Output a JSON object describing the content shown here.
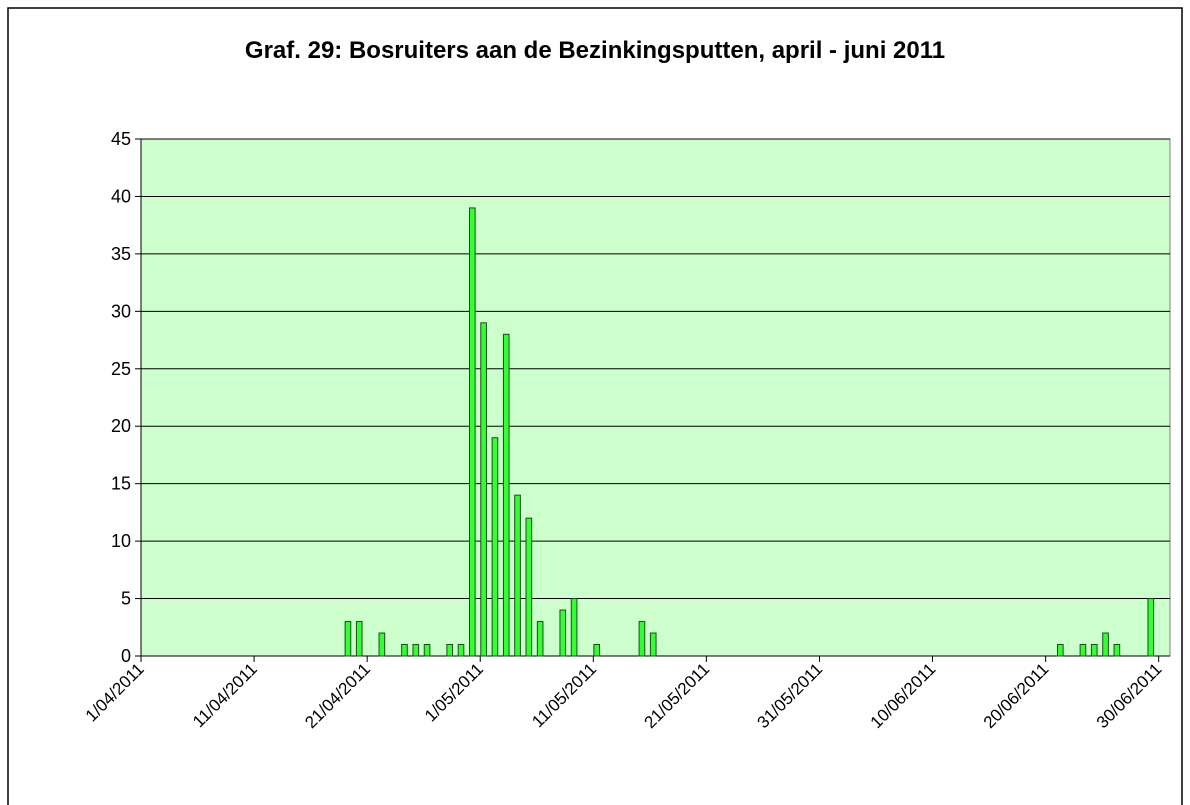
{
  "chart_data": {
    "type": "bar",
    "title": "Graf. 29: Bosruiters aan de Bezinkingsputten, april - juni 2011",
    "x": [
      "19/04/2011",
      "20/04/2011",
      "22/04/2011",
      "24/04/2011",
      "25/04/2011",
      "26/04/2011",
      "28/04/2011",
      "29/04/2011",
      "30/04/2011",
      "1/05/2011",
      "2/05/2011",
      "3/05/2011",
      "4/05/2011",
      "5/05/2011",
      "6/05/2011",
      "8/05/2011",
      "9/05/2011",
      "11/05/2011",
      "15/05/2011",
      "16/05/2011",
      "21/06/2011",
      "23/06/2011",
      "24/06/2011",
      "25/06/2011",
      "26/06/2011",
      "29/06/2011"
    ],
    "values": [
      3,
      3,
      2,
      1,
      1,
      1,
      1,
      1,
      39,
      29,
      19,
      28,
      14,
      12,
      3,
      4,
      5,
      1,
      3,
      2,
      1,
      1,
      1,
      2,
      1,
      5
    ],
    "color": "#33ff33",
    "xlim": [
      "1/04/2011",
      "1/07/2011"
    ],
    "xticks": [
      "1/04/2011",
      "11/04/2011",
      "21/04/2011",
      "1/05/2011",
      "11/05/2011",
      "21/05/2011",
      "31/05/2011",
      "10/06/2011",
      "20/06/2011",
      "30/06/2011"
    ],
    "ylim": [
      0,
      45
    ],
    "yticks": [
      0,
      5,
      10,
      15,
      20,
      25,
      30,
      35,
      40,
      45
    ],
    "grid": true,
    "plot_background": "#ccffcc"
  }
}
